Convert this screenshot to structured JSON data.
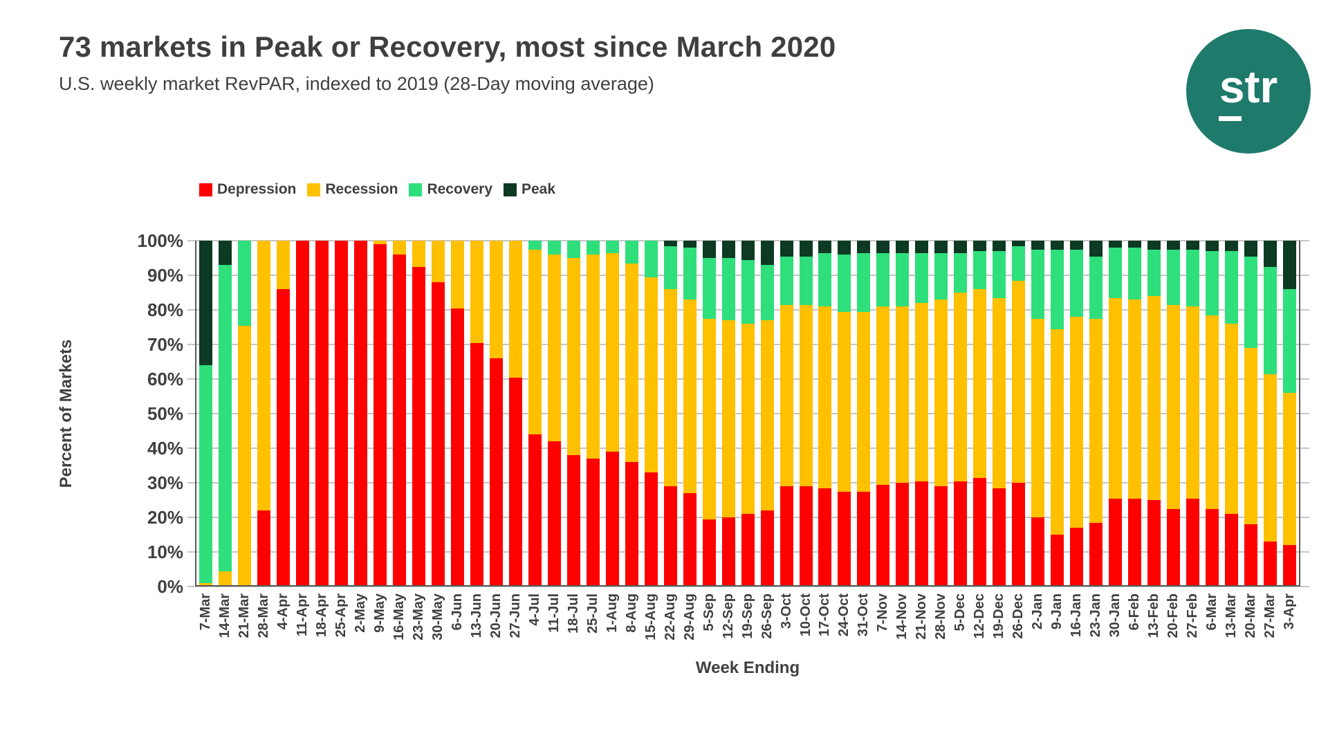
{
  "header": {
    "title": "73 markets in Peak or Recovery, most since March 2020",
    "subtitle": "U.S. weekly market RevPAR, indexed to 2019 (28-Day moving average)"
  },
  "logo": {
    "text": "str"
  },
  "colors": {
    "depression": "#ff0000",
    "recession": "#ffc000",
    "recovery": "#2edf7c",
    "peak": "#0c3a22",
    "logo_circle": "#1e7a6b",
    "gridline": "#c5c5c5",
    "axis": "#595959",
    "text": "#3f3f3f"
  },
  "chart_data": {
    "type": "bar",
    "subtype": "stacked-100-percent",
    "title": "73 markets in Peak or Recovery, most since March 2020",
    "xlabel": "Week Ending",
    "ylabel": "Percent of Markets",
    "ylim": [
      0,
      100
    ],
    "grid": true,
    "legend_position": "top",
    "y_ticks": [
      0,
      10,
      20,
      30,
      40,
      50,
      60,
      70,
      80,
      90,
      100
    ],
    "y_tick_suffix": "%",
    "categories": [
      "7-Mar",
      "14-Mar",
      "21-Mar",
      "28-Mar",
      "4-Apr",
      "11-Apr",
      "18-Apr",
      "25-Apr",
      "2-May",
      "9-May",
      "16-May",
      "23-May",
      "30-May",
      "6-Jun",
      "13-Jun",
      "20-Jun",
      "27-Jun",
      "4-Jul",
      "11-Jul",
      "18-Jul",
      "25-Jul",
      "1-Aug",
      "8-Aug",
      "15-Aug",
      "22-Aug",
      "29-Aug",
      "5-Sep",
      "12-Sep",
      "19-Sep",
      "26-Sep",
      "3-Oct",
      "10-Oct",
      "17-Oct",
      "24-Oct",
      "31-Oct",
      "7-Nov",
      "14-Nov",
      "21-Nov",
      "28-Nov",
      "5-Dec",
      "12-Dec",
      "19-Dec",
      "26-Dec",
      "2-Jan",
      "9-Jan",
      "16-Jan",
      "23-Jan",
      "30-Jan",
      "6-Feb",
      "13-Feb",
      "20-Feb",
      "27-Feb",
      "6-Mar",
      "13-Mar",
      "20-Mar",
      "27-Mar",
      "3-Apr"
    ],
    "series": [
      {
        "name": "Depression",
        "color": "#ff0000",
        "values": [
          0,
          0,
          0,
          22,
          86,
          100,
          100,
          100,
          100,
          99,
          96,
          92.5,
          88,
          80.5,
          70.5,
          66,
          60.5,
          44,
          42,
          38,
          37,
          39,
          36,
          33,
          29,
          27,
          19.5,
          20,
          21,
          22,
          29,
          29,
          28.5,
          27.5,
          27.5,
          29.5,
          30,
          30.5,
          29,
          30.5,
          31.5,
          28.5,
          30,
          20,
          15,
          17,
          18.5,
          25.5,
          25.5,
          25,
          22.5,
          25.5,
          22.5,
          21,
          18,
          13,
          12
        ]
      },
      {
        "name": "Recession",
        "color": "#ffc000",
        "values": [
          1,
          4.5,
          75.5,
          78,
          14,
          0,
          0,
          0,
          0,
          1,
          4,
          7.5,
          12,
          19.5,
          29.5,
          34,
          39.5,
          53.5,
          54,
          57,
          59,
          57.5,
          57.5,
          56.5,
          57,
          56,
          58,
          57,
          55,
          55,
          52.5,
          52.5,
          52.5,
          52,
          52,
          51.5,
          51,
          51.5,
          54,
          54.5,
          54.5,
          55,
          58.5,
          57.5,
          59.5,
          61,
          59,
          58,
          57.5,
          59,
          59,
          55.5,
          56,
          55,
          51,
          48.5,
          44
        ]
      },
      {
        "name": "Recovery",
        "color": "#2edf7c",
        "values": [
          63,
          88.5,
          24.5,
          0,
          0,
          0,
          0,
          0,
          0,
          0,
          0,
          0,
          0,
          0,
          0,
          0,
          0,
          2.5,
          4,
          5,
          4,
          3.5,
          6.5,
          10.5,
          12.5,
          15,
          17.5,
          18,
          18.5,
          16,
          14,
          14,
          15.5,
          16.5,
          17,
          15.5,
          15.5,
          14.5,
          13.5,
          11.5,
          11,
          13.5,
          10,
          20,
          23,
          19.5,
          18,
          14.5,
          15,
          13.5,
          16,
          16.5,
          18.5,
          21,
          26.5,
          31,
          30
        ]
      },
      {
        "name": "Peak",
        "color": "#0c3a22",
        "values": [
          36,
          7,
          0,
          0,
          0,
          0,
          0,
          0,
          0,
          0,
          0,
          0,
          0,
          0,
          0,
          0,
          0,
          0,
          0,
          0,
          0,
          0,
          0,
          0,
          1.5,
          2,
          5,
          5,
          5.5,
          7,
          4.5,
          4.5,
          3.5,
          4,
          3.5,
          3.5,
          3.5,
          3.5,
          3.5,
          3.5,
          3,
          3,
          1.5,
          2.5,
          2.5,
          2.5,
          4.5,
          2,
          2,
          2.5,
          2.5,
          2.5,
          3,
          3,
          4.5,
          7.5,
          14
        ]
      }
    ]
  }
}
